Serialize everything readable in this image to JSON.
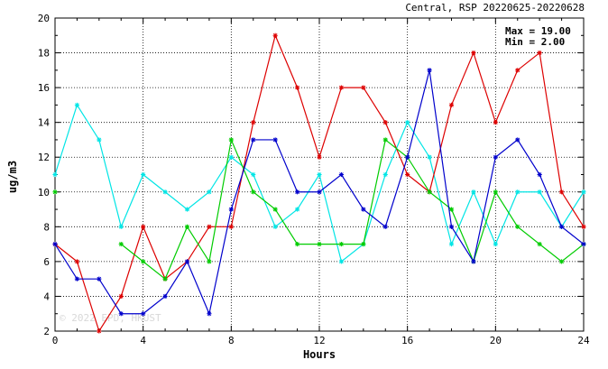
{
  "chart_data": {
    "type": "line",
    "title": "Central, RSP 20220625-20220628",
    "xlabel": "Hours",
    "ylabel": "ug/m3",
    "xlim": [
      0,
      24
    ],
    "ylim": [
      2,
      20
    ],
    "xticks": [
      0,
      4,
      8,
      12,
      16,
      20,
      24
    ],
    "yticks": [
      2,
      4,
      6,
      8,
      10,
      12,
      14,
      16,
      18,
      20
    ],
    "grid": true,
    "annotations": {
      "max": "Max = 19.00",
      "min": "Min =  2.00"
    },
    "watermark": "© 2022 EPD, HKUST",
    "x": [
      0,
      1,
      2,
      3,
      4,
      5,
      6,
      7,
      8,
      9,
      10,
      11,
      12,
      13,
      14,
      15,
      16,
      17,
      18,
      19,
      20,
      21,
      22,
      23,
      24
    ],
    "series": [
      {
        "color": "#00e5e5",
        "values": [
          11,
          15,
          13,
          8,
          11,
          10,
          9,
          10,
          12,
          11,
          8,
          9,
          11,
          6,
          7,
          11,
          14,
          12,
          7,
          10,
          7,
          10,
          10,
          8,
          10
        ]
      },
      {
        "color": "#dd0000",
        "values": [
          7,
          6,
          2,
          4,
          8,
          5,
          6,
          8,
          8,
          14,
          19,
          16,
          12,
          16,
          16,
          14,
          11,
          10,
          15,
          18,
          14,
          17,
          18,
          10,
          8
        ]
      },
      {
        "color": "#00cc00",
        "values": [
          10,
          null,
          null,
          7,
          6,
          5,
          8,
          6,
          13,
          10,
          9,
          7,
          7,
          7,
          7,
          13,
          12,
          10,
          9,
          6,
          10,
          8,
          7,
          6,
          7
        ]
      },
      {
        "color": "#0000cc",
        "values": [
          7,
          5,
          5,
          3,
          3,
          4,
          6,
          3,
          9,
          13,
          13,
          10,
          10,
          11,
          9,
          8,
          12,
          17,
          8,
          6,
          12,
          13,
          11,
          8,
          7
        ]
      }
    ]
  }
}
